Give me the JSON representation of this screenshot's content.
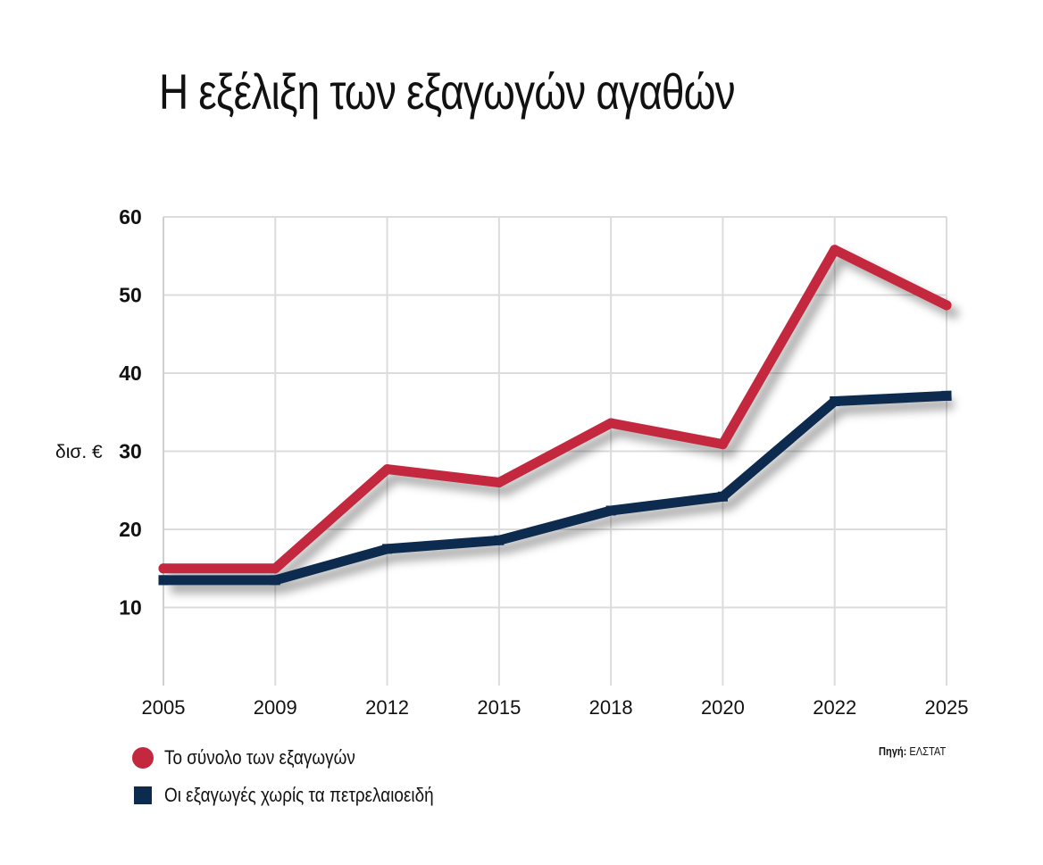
{
  "chart_data": {
    "type": "line",
    "title": "Η εξέλιξη των εξαγωγών αγαθών",
    "ylabel": "δισ. €",
    "xlabel": "",
    "categories": [
      "2005",
      "2009",
      "2012",
      "2015",
      "2018",
      "2020",
      "2022",
      "2025"
    ],
    "ylim": [
      0,
      60
    ],
    "yticks": [
      10,
      20,
      30,
      40,
      50,
      60
    ],
    "grid": true,
    "legend_position": "bottom-left",
    "series": [
      {
        "name": "Το σύνολο των εξαγωγών",
        "color": "#c3283e",
        "marker": "circle",
        "values": [
          15.0,
          15.0,
          27.7,
          26.0,
          33.6,
          30.9,
          55.8,
          48.7
        ]
      },
      {
        "name": "Οι εξαγωγές χωρίς τα πετρελαιοειδή",
        "color": "#0d2a4f",
        "marker": "square",
        "values": [
          13.5,
          13.5,
          17.5,
          18.6,
          22.4,
          24.2,
          36.4,
          37.1
        ]
      }
    ]
  },
  "source": {
    "prefix": "Πηγή:",
    "name": "ΕΛΣΤΑΤ"
  }
}
